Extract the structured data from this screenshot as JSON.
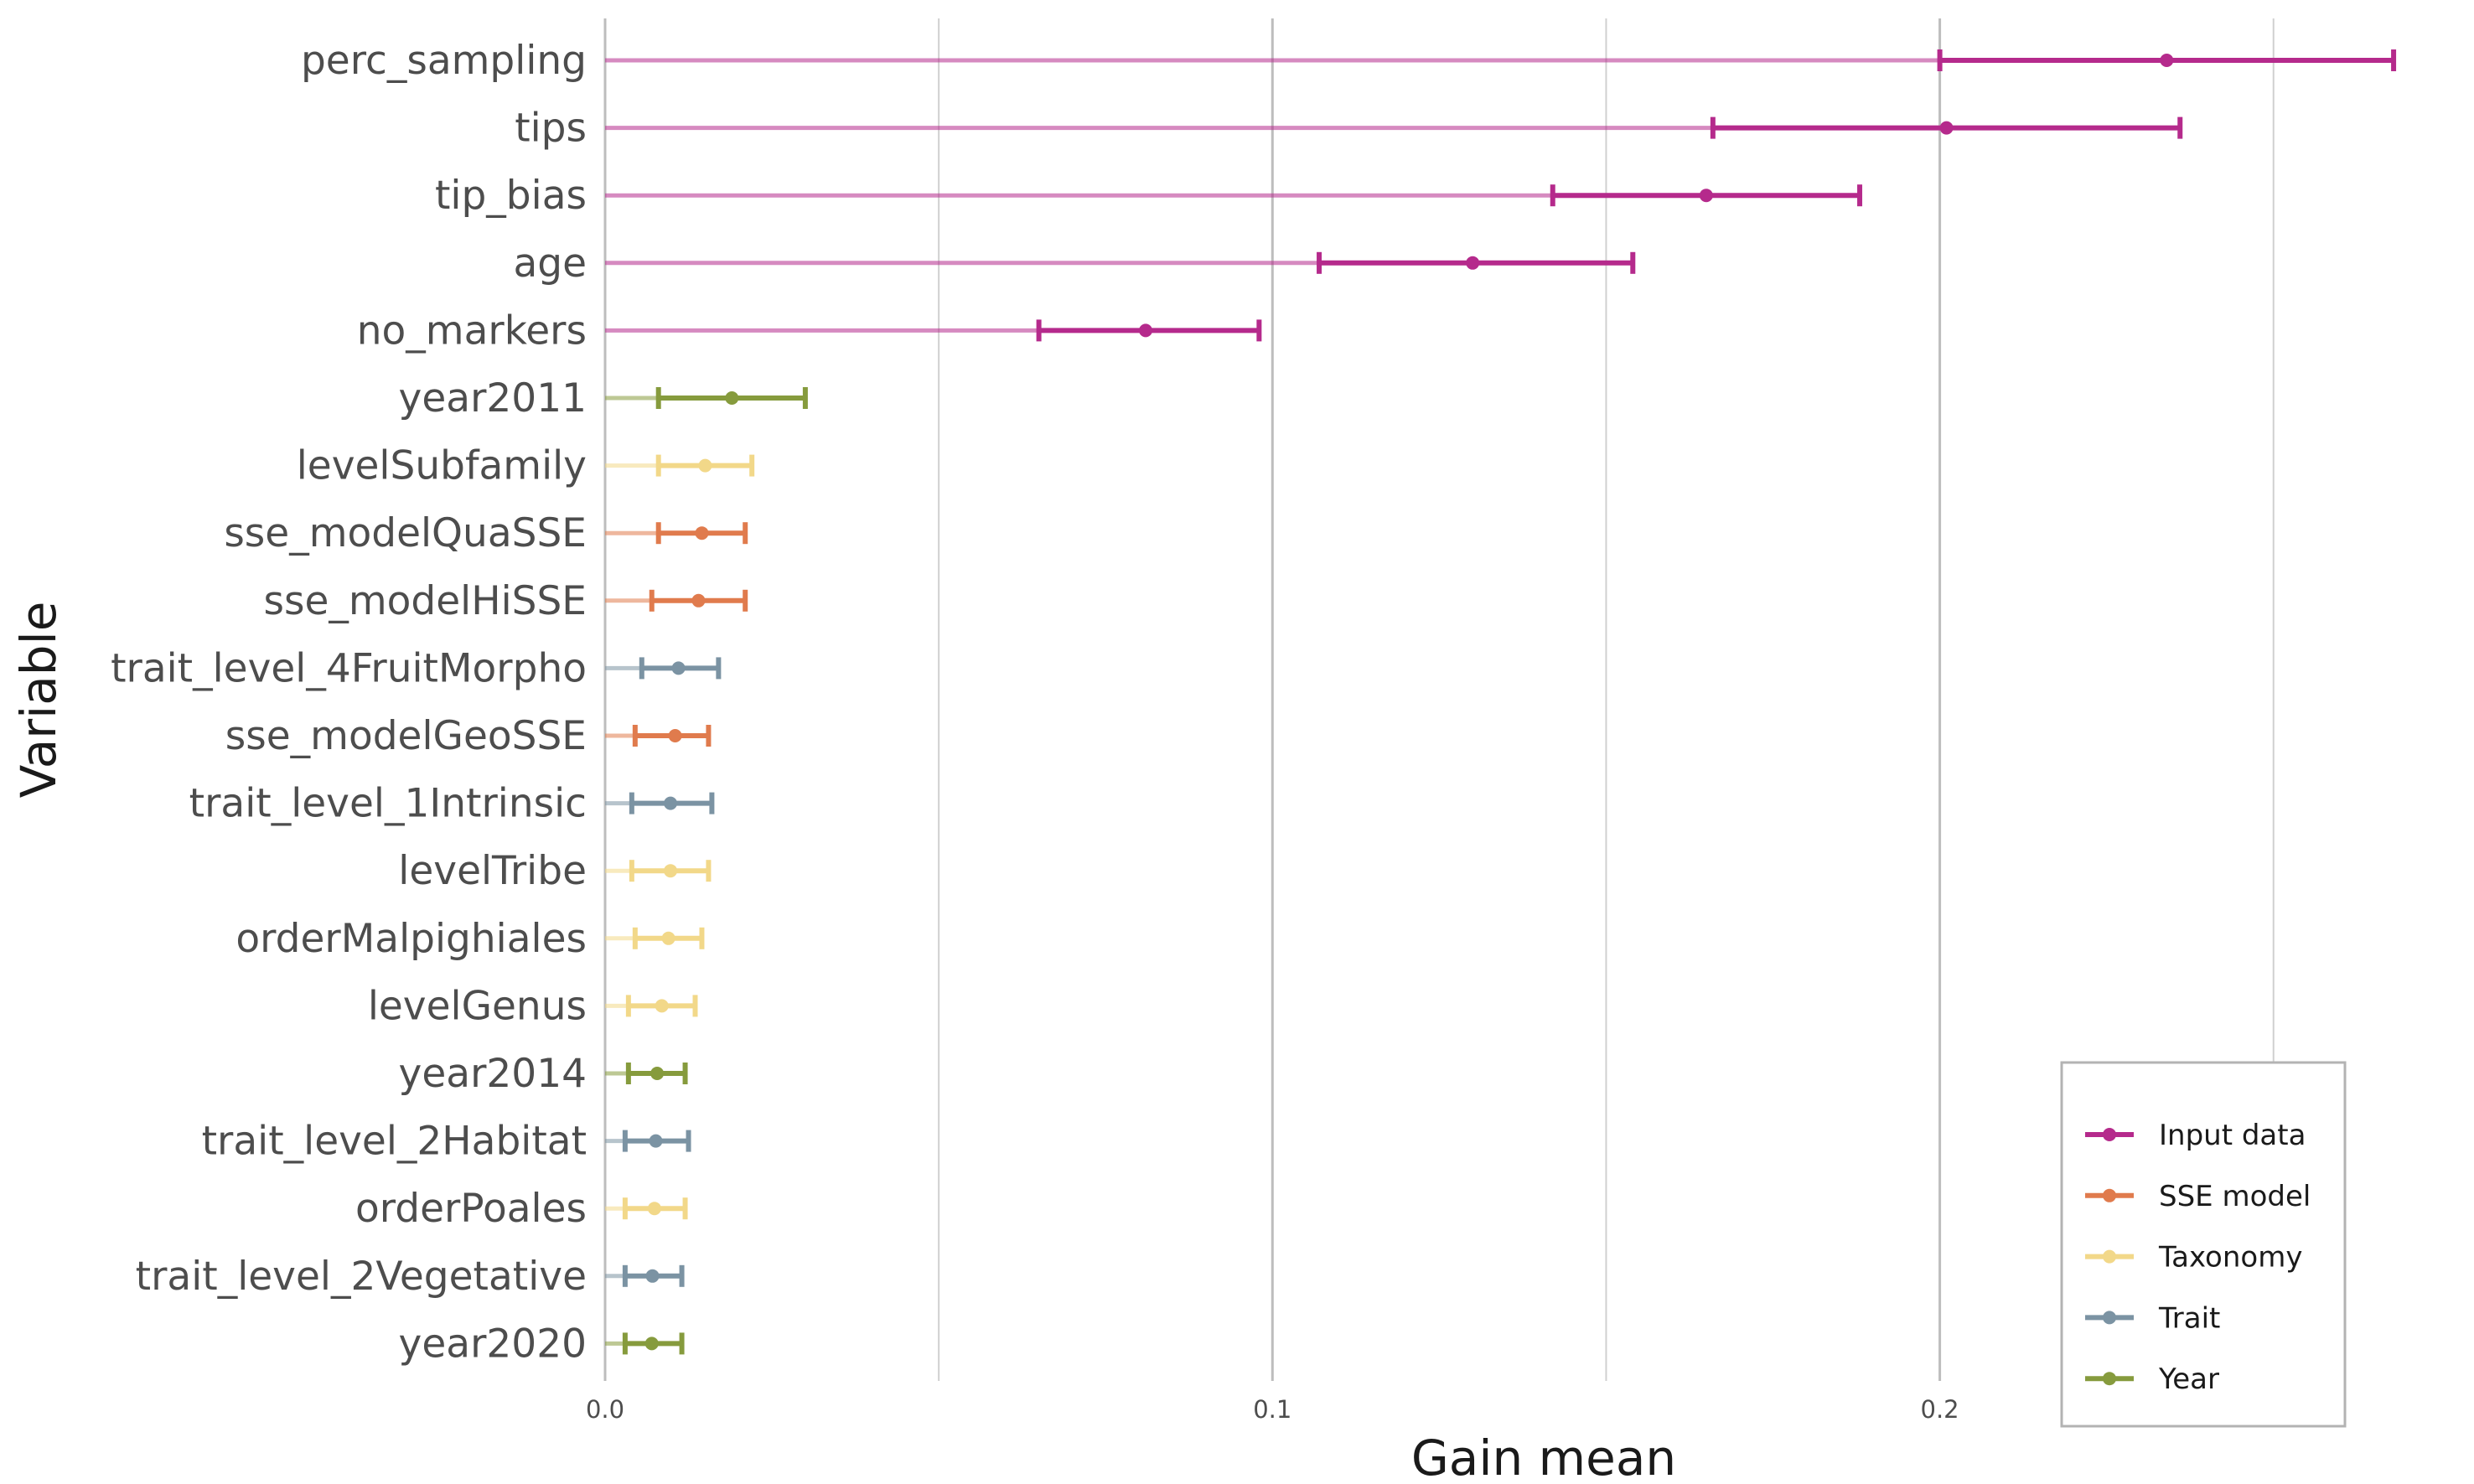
{
  "chart_data": {
    "type": "errorbar",
    "title": "",
    "xlabel": "Gain mean",
    "ylabel": "Variable",
    "xlim": [
      0.0,
      0.27
    ],
    "x_ticks": [
      {
        "value": 0.0,
        "label": "0.0"
      },
      {
        "value": 0.1,
        "label": "0.1"
      },
      {
        "value": 0.2,
        "label": "0.2"
      }
    ],
    "x_minor_ticks": [
      0.05,
      0.15,
      0.25
    ],
    "grid": true,
    "legend": {
      "position": "bottom-right",
      "entries": [
        {
          "label": "Input data",
          "color": "#b52a8c"
        },
        {
          "label": "SSE model",
          "color": "#e07b4d"
        },
        {
          "label": "Taxonomy",
          "color": "#f2d889"
        },
        {
          "label": "Trait",
          "color": "#7b93a3"
        },
        {
          "label": "Year",
          "color": "#869b3d"
        }
      ]
    },
    "rows": [
      {
        "variable": "perc_sampling",
        "group": "Input data",
        "mean": 0.234,
        "lower": 0.2,
        "upper": 0.268
      },
      {
        "variable": "tips",
        "group": "Input data",
        "mean": 0.201,
        "lower": 0.166,
        "upper": 0.236
      },
      {
        "variable": "tip_bias",
        "group": "Input data",
        "mean": 0.165,
        "lower": 0.142,
        "upper": 0.188
      },
      {
        "variable": "age",
        "group": "Input data",
        "mean": 0.13,
        "lower": 0.107,
        "upper": 0.154
      },
      {
        "variable": "no_markers",
        "group": "Input data",
        "mean": 0.081,
        "lower": 0.065,
        "upper": 0.098
      },
      {
        "variable": "year2011",
        "group": "Year",
        "mean": 0.019,
        "lower": 0.008,
        "upper": 0.03
      },
      {
        "variable": "levelSubfamily",
        "group": "Taxonomy",
        "mean": 0.015,
        "lower": 0.008,
        "upper": 0.022
      },
      {
        "variable": "sse_modelQuaSSE",
        "group": "SSE model",
        "mean": 0.0145,
        "lower": 0.008,
        "upper": 0.021
      },
      {
        "variable": "sse_modelHiSSE",
        "group": "SSE model",
        "mean": 0.014,
        "lower": 0.007,
        "upper": 0.021
      },
      {
        "variable": "trait_level_4FruitMorpho",
        "group": "Trait",
        "mean": 0.011,
        "lower": 0.0055,
        "upper": 0.017
      },
      {
        "variable": "sse_modelGeoSSE",
        "group": "SSE model",
        "mean": 0.0105,
        "lower": 0.0045,
        "upper": 0.0155
      },
      {
        "variable": "trait_level_1Intrinsic",
        "group": "Trait",
        "mean": 0.0098,
        "lower": 0.004,
        "upper": 0.016
      },
      {
        "variable": "levelTribe",
        "group": "Taxonomy",
        "mean": 0.0098,
        "lower": 0.004,
        "upper": 0.0155
      },
      {
        "variable": "orderMalpighiales",
        "group": "Taxonomy",
        "mean": 0.0095,
        "lower": 0.0045,
        "upper": 0.0145
      },
      {
        "variable": "levelGenus",
        "group": "Taxonomy",
        "mean": 0.0085,
        "lower": 0.0035,
        "upper": 0.0135
      },
      {
        "variable": "year2014",
        "group": "Year",
        "mean": 0.0078,
        "lower": 0.0035,
        "upper": 0.012
      },
      {
        "variable": "trait_level_2Habitat",
        "group": "Trait",
        "mean": 0.0076,
        "lower": 0.003,
        "upper": 0.0125
      },
      {
        "variable": "orderPoales",
        "group": "Taxonomy",
        "mean": 0.0074,
        "lower": 0.003,
        "upper": 0.012
      },
      {
        "variable": "trait_level_2Vegetative",
        "group": "Trait",
        "mean": 0.0071,
        "lower": 0.003,
        "upper": 0.0115
      },
      {
        "variable": "year2020",
        "group": "Year",
        "mean": 0.007,
        "lower": 0.003,
        "upper": 0.0115
      }
    ]
  }
}
